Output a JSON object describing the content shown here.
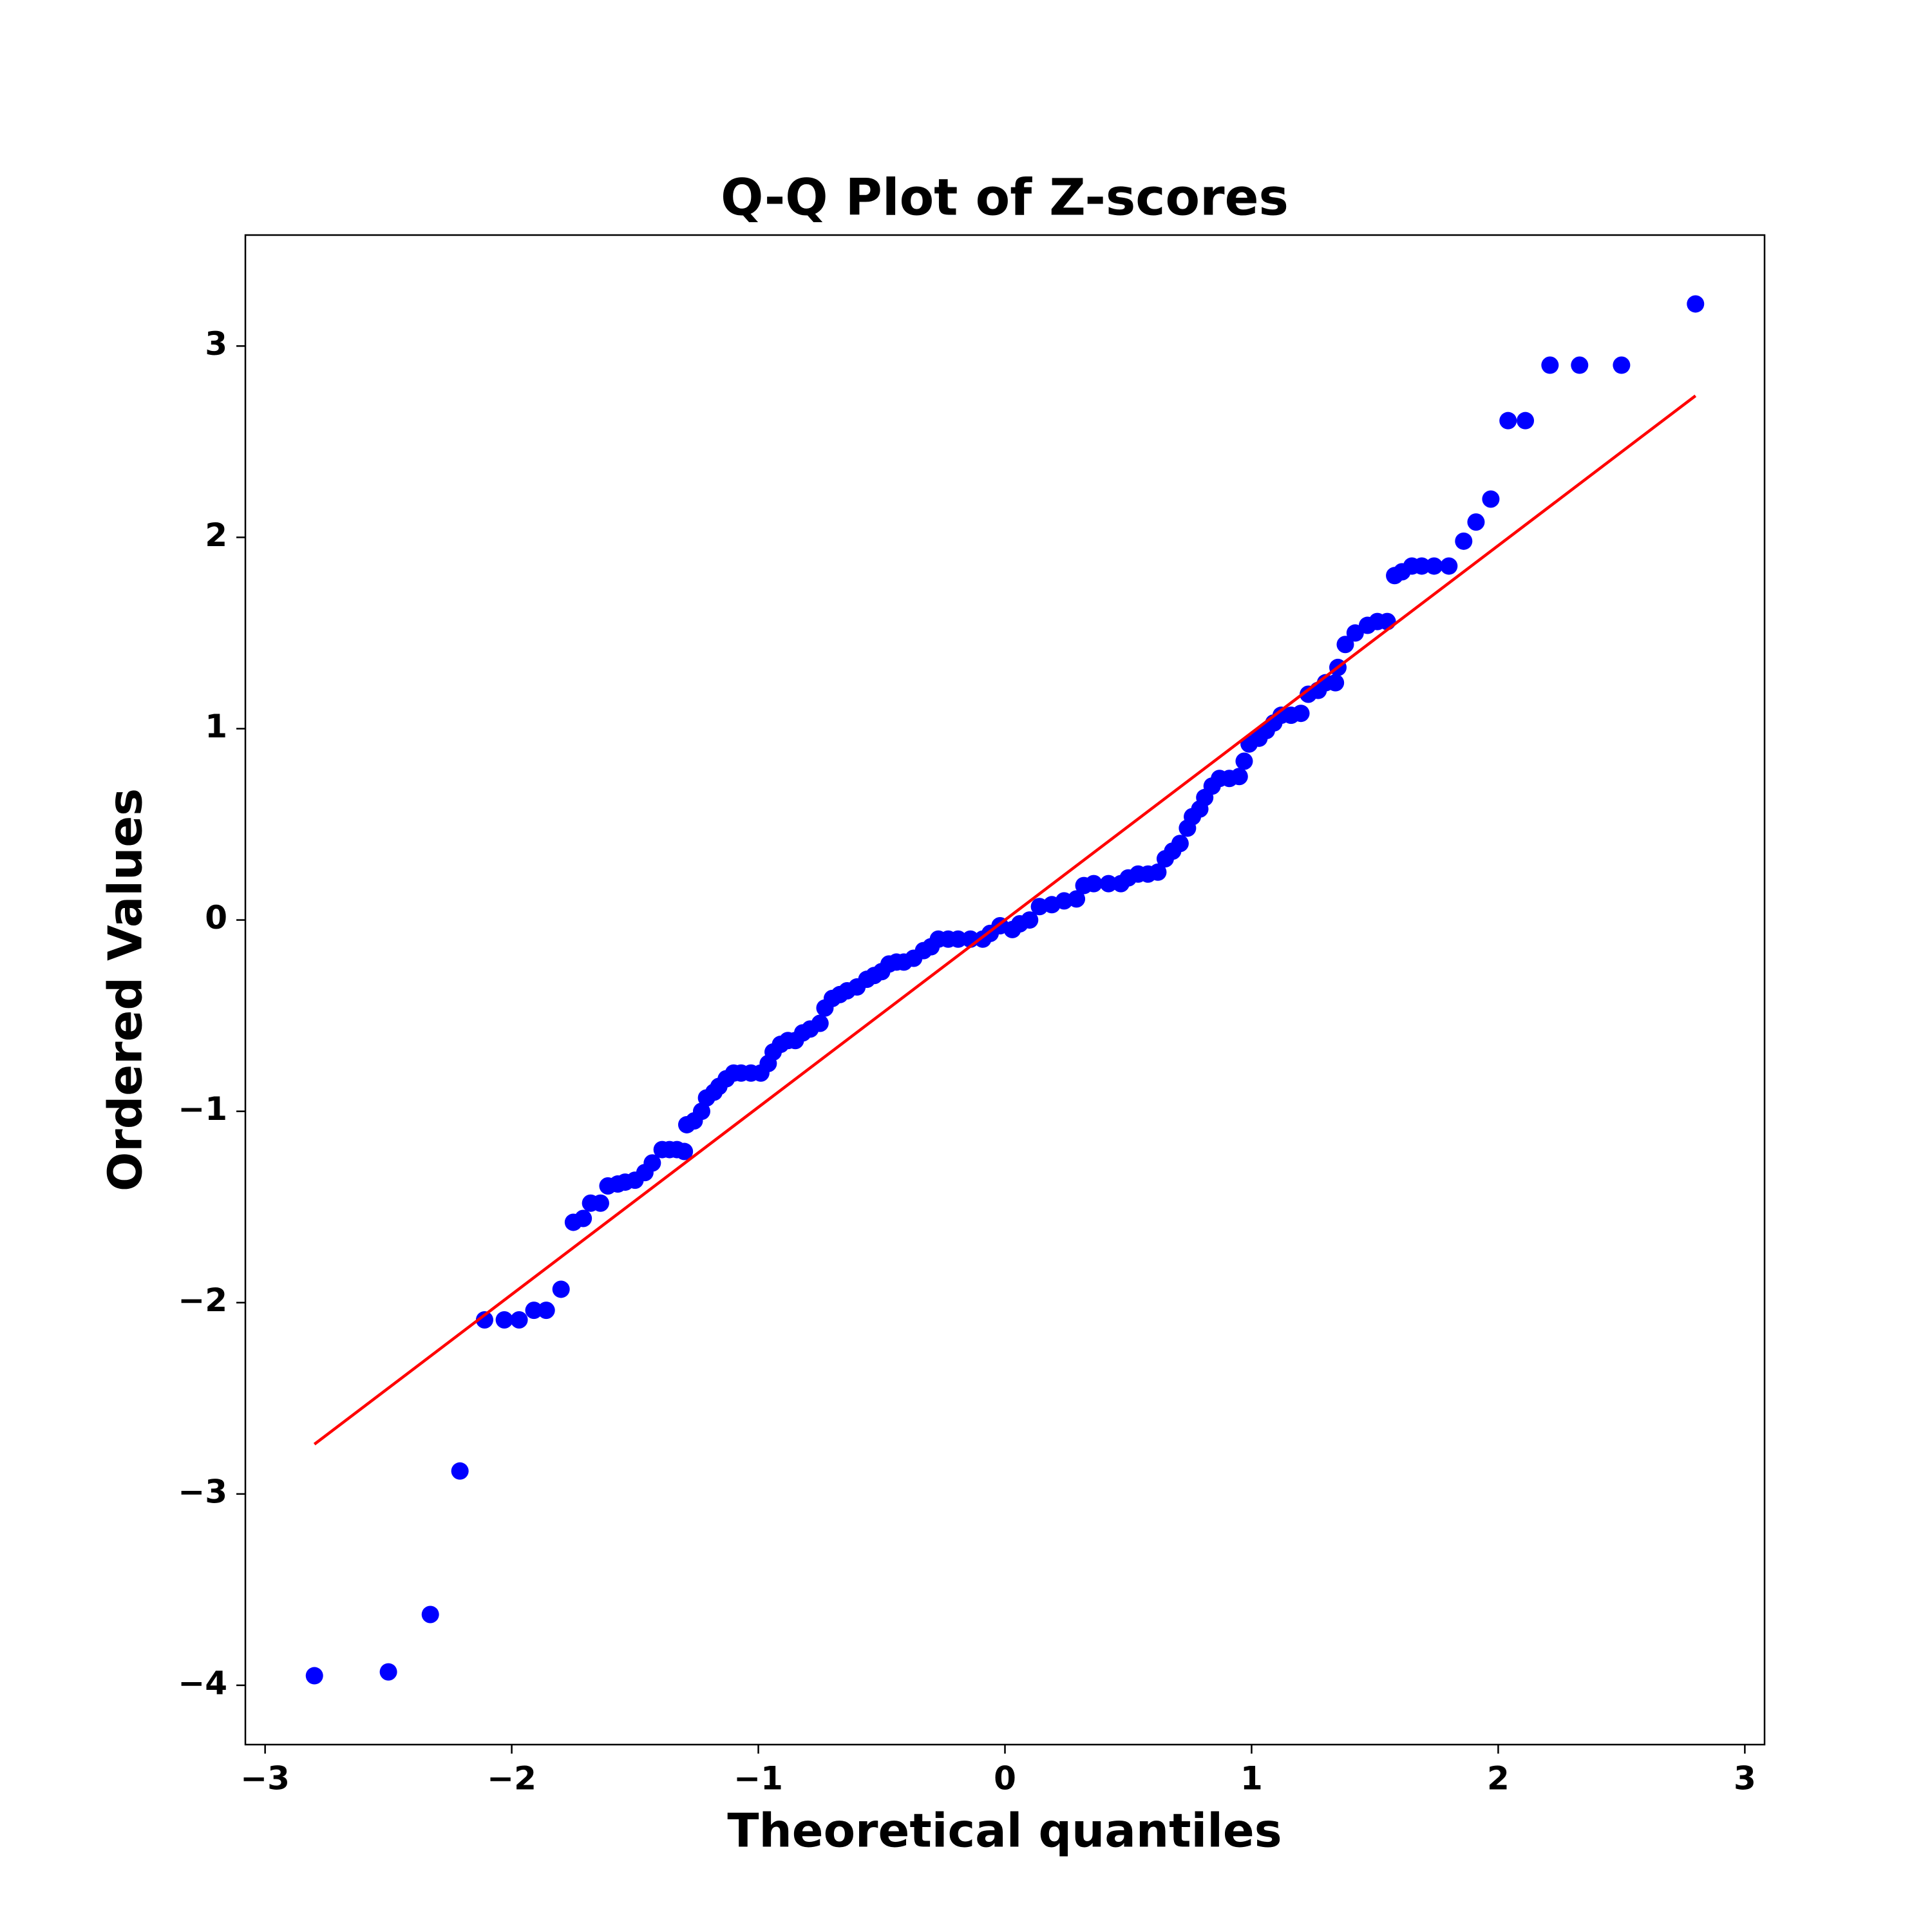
{
  "chart_data": {
    "type": "scatter",
    "title": "Q-Q Plot of Z-scores",
    "xlabel": "Theoretical quantiles",
    "ylabel": "Ordered Values",
    "x": [
      -2.8,
      -2.5,
      -2.33,
      -2.21,
      -2.11,
      -2.03,
      -1.97,
      -1.91,
      -1.86,
      -1.8,
      -1.75,
      -1.71,
      -1.68,
      -1.64,
      -1.61,
      -1.57,
      -1.54,
      -1.5,
      -1.46,
      -1.43,
      -1.39,
      -1.36,
      -1.33,
      -1.3,
      -1.29,
      -1.26,
      -1.23,
      -1.21,
      -1.18,
      -1.16,
      -1.13,
      -1.1,
      -1.07,
      -1.03,
      -0.99,
      -0.96,
      -0.94,
      -0.91,
      -0.88,
      -0.85,
      -0.82,
      -0.79,
      -0.75,
      -0.73,
      -0.7,
      -0.67,
      -0.64,
      -0.6,
      -0.56,
      -0.53,
      -0.5,
      -0.47,
      -0.44,
      -0.41,
      -0.37,
      -0.33,
      -0.3,
      -0.27,
      -0.23,
      -0.19,
      -0.14,
      -0.09,
      -0.06,
      -0.02,
      0.03,
      0.06,
      0.1,
      0.14,
      0.19,
      0.24,
      0.29,
      0.32,
      0.36,
      0.42,
      0.47,
      0.5,
      0.54,
      0.58,
      0.62,
      0.65,
      0.68,
      0.71,
      0.74,
      0.76,
      0.79,
      0.81,
      0.84,
      0.87,
      0.91,
      0.95,
      0.97,
      0.99,
      1.03,
      1.06,
      1.09,
      1.12,
      1.16,
      1.2,
      1.23,
      1.27,
      1.3,
      1.34,
      1.35,
      1.38,
      1.42,
      1.47,
      1.51,
      1.55,
      1.58,
      1.61,
      1.65,
      1.69,
      1.74,
      1.8,
      1.86,
      1.91,
      1.97,
      2.04,
      2.11,
      2.21,
      2.33,
      2.5,
      2.8
    ],
    "values": [
      -3.95,
      -3.93,
      -3.63,
      -2.88,
      -2.09,
      -2.09,
      -2.09,
      -2.04,
      -2.04,
      -1.93,
      -1.58,
      -1.56,
      -1.48,
      -1.48,
      -1.39,
      -1.38,
      -1.37,
      -1.36,
      -1.32,
      -1.27,
      -1.2,
      -1.2,
      -1.2,
      -1.21,
      -1.07,
      -1.05,
      -1.0,
      -0.93,
      -0.9,
      -0.87,
      -0.83,
      -0.8,
      -0.8,
      -0.8,
      -0.8,
      -0.75,
      -0.69,
      -0.65,
      -0.63,
      -0.63,
      -0.59,
      -0.57,
      -0.54,
      -0.46,
      -0.41,
      -0.39,
      -0.37,
      -0.35,
      -0.31,
      -0.29,
      -0.27,
      -0.23,
      -0.22,
      -0.22,
      -0.2,
      -0.16,
      -0.14,
      -0.1,
      -0.1,
      -0.1,
      -0.1,
      -0.1,
      -0.07,
      -0.03,
      -0.05,
      -0.02,
      0.0,
      0.07,
      0.08,
      0.1,
      0.11,
      0.18,
      0.19,
      0.19,
      0.19,
      0.22,
      0.24,
      0.24,
      0.25,
      0.32,
      0.36,
      0.4,
      0.48,
      0.54,
      0.58,
      0.64,
      0.7,
      0.74,
      0.74,
      0.75,
      0.83,
      0.92,
      0.95,
      0.99,
      1.03,
      1.07,
      1.07,
      1.08,
      1.18,
      1.2,
      1.24,
      1.24,
      1.32,
      1.44,
      1.5,
      1.54,
      1.56,
      1.56,
      1.8,
      1.82,
      1.85,
      1.85,
      1.85,
      1.85,
      1.98,
      2.08,
      2.2,
      2.61,
      2.61,
      2.9,
      2.9,
      2.9,
      3.22
    ],
    "color": "#0000ff",
    "fit_line": {
      "x": [
        -2.8,
        2.8
      ],
      "values": [
        -2.74,
        2.74
      ],
      "color": "#ff0000"
    },
    "xlim": [
      -3.08,
      3.08
    ],
    "ylim": [
      -4.31,
      3.58
    ],
    "xticks": [
      {
        "value": -3,
        "label": "−3"
      },
      {
        "value": -2,
        "label": "−2"
      },
      {
        "value": -1,
        "label": "−1"
      },
      0,
      1,
      2,
      3
    ],
    "yticks": [
      {
        "value": -4,
        "label": "−4"
      },
      {
        "value": -3,
        "label": "−3"
      },
      {
        "value": -2,
        "label": "−2"
      },
      {
        "value": -1,
        "label": "−1"
      },
      0,
      1,
      2,
      3
    ],
    "grid": false
  }
}
